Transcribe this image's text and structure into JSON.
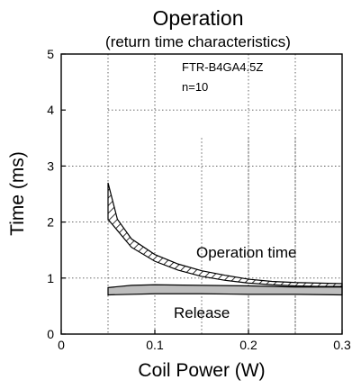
{
  "chart_data": {
    "type": "area",
    "title": "Operation",
    "subtitle": "(return time characteristics)",
    "xlabel": "Coil Power (W)",
    "ylabel": "Time (ms)",
    "xlim": [
      0,
      0.3
    ],
    "ylim": [
      0,
      5
    ],
    "x_ticks": [
      "0",
      "0.1",
      "0.2",
      "0.3"
    ],
    "y_ticks": [
      "0",
      "1",
      "2",
      "3",
      "4",
      "5"
    ],
    "grid": "dotted",
    "annotations": [
      "FTR-B4GA4.5Z",
      "n=10"
    ],
    "series": [
      {
        "name": "Operation time",
        "fill": "hatched",
        "upper": [
          [
            0.05,
            2.7
          ],
          [
            0.06,
            2.05
          ],
          [
            0.075,
            1.7
          ],
          [
            0.1,
            1.42
          ],
          [
            0.125,
            1.25
          ],
          [
            0.15,
            1.13
          ],
          [
            0.175,
            1.05
          ],
          [
            0.2,
            0.98
          ],
          [
            0.225,
            0.94
          ],
          [
            0.25,
            0.92
          ],
          [
            0.275,
            0.91
          ],
          [
            0.3,
            0.9
          ]
        ],
        "lower": [
          [
            0.05,
            2.05
          ],
          [
            0.06,
            1.85
          ],
          [
            0.075,
            1.55
          ],
          [
            0.1,
            1.3
          ],
          [
            0.125,
            1.14
          ],
          [
            0.15,
            1.03
          ],
          [
            0.175,
            0.96
          ],
          [
            0.2,
            0.91
          ],
          [
            0.225,
            0.88
          ],
          [
            0.25,
            0.86
          ],
          [
            0.275,
            0.85
          ],
          [
            0.3,
            0.85
          ]
        ]
      },
      {
        "name": "Release",
        "fill": "gray",
        "upper": [
          [
            0.05,
            0.83
          ],
          [
            0.075,
            0.87
          ],
          [
            0.1,
            0.88
          ],
          [
            0.15,
            0.87
          ],
          [
            0.2,
            0.86
          ],
          [
            0.25,
            0.84
          ],
          [
            0.3,
            0.84
          ]
        ],
        "lower": [
          [
            0.05,
            0.7
          ],
          [
            0.1,
            0.72
          ],
          [
            0.15,
            0.72
          ],
          [
            0.2,
            0.71
          ],
          [
            0.25,
            0.71
          ],
          [
            0.3,
            0.7
          ]
        ]
      }
    ],
    "colors": {
      "release_fill": "#bdbdbd",
      "stroke": "#000000",
      "background": "#ffffff"
    }
  }
}
